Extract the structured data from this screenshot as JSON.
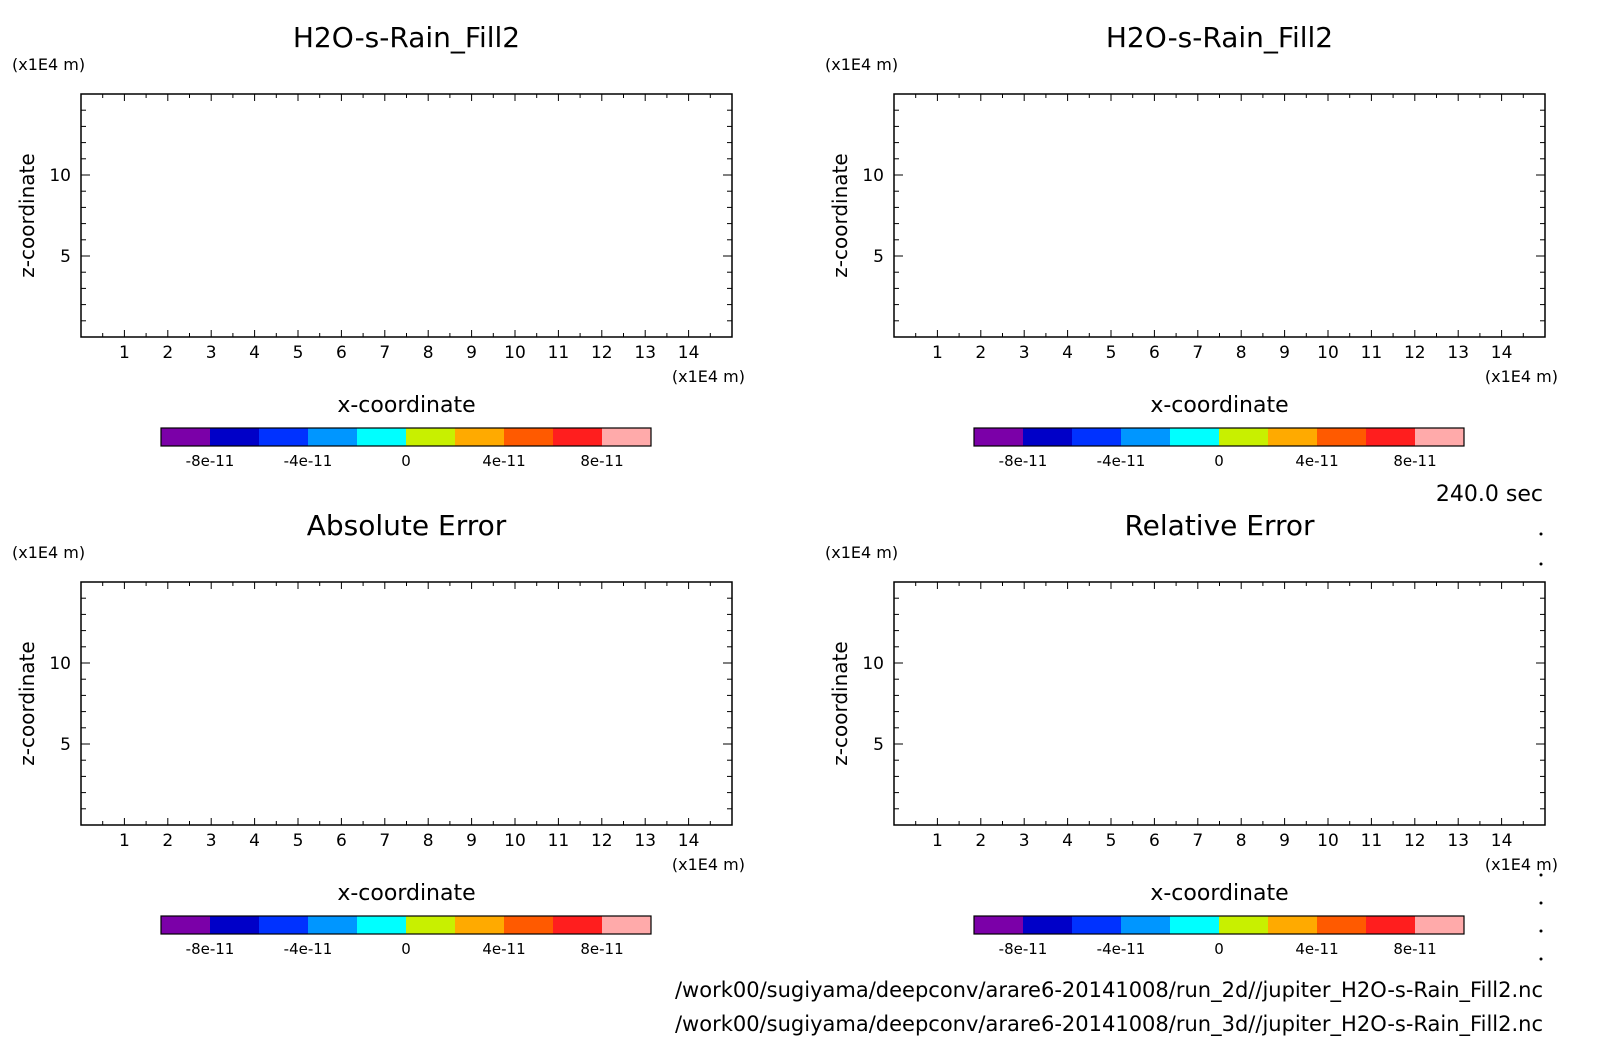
{
  "time_label": "240.0 sec",
  "footer_lines": [
    "/work00/sugiyama/deepconv/arare6-20141008/run_2d//jupiter_H2O-s-Rain_Fill2.nc",
    "/work00/sugiyama/deepconv/arare6-20141008/run_3d//jupiter_H2O-s-Rain_Fill2.nc"
  ],
  "colorbar_colors": [
    "#7b00a8",
    "#0000c8",
    "#0032ff",
    "#0096ff",
    "#00ffff",
    "#c8f000",
    "#ffaa00",
    "#ff5a00",
    "#ff1e1e",
    "#ffaaaa"
  ],
  "chart_data": [
    {
      "type": "heatmap",
      "title": "H2O-s-Rain_Fill2",
      "xlabel": "x-coordinate",
      "ylabel": "z-coordinate",
      "x_unit": "(x1E4 m)",
      "y_unit": "(x1E4 m)",
      "xlim": [
        0,
        15
      ],
      "ylim": [
        0,
        15
      ],
      "x_ticks": [
        1,
        2,
        3,
        4,
        5,
        6,
        7,
        8,
        9,
        10,
        11,
        12,
        13,
        14
      ],
      "y_ticks": [
        5,
        10
      ],
      "grid": false,
      "colorbar_range": [
        -1e-10,
        1e-10
      ],
      "colorbar_ticks": [
        {
          "value": -8e-11,
          "label": "-8e-11"
        },
        {
          "value": -4e-11,
          "label": "-4e-11"
        },
        {
          "value": 0,
          "label": "0"
        },
        {
          "value": 4e-11,
          "label": "4e-11"
        },
        {
          "value": 8e-11,
          "label": "8e-11"
        }
      ],
      "values": []
    },
    {
      "type": "heatmap",
      "title": "H2O-s-Rain_Fill2",
      "xlabel": "x-coordinate",
      "ylabel": "z-coordinate",
      "x_unit": "(x1E4 m)",
      "y_unit": "(x1E4 m)",
      "xlim": [
        0,
        15
      ],
      "ylim": [
        0,
        15
      ],
      "x_ticks": [
        1,
        2,
        3,
        4,
        5,
        6,
        7,
        8,
        9,
        10,
        11,
        12,
        13,
        14
      ],
      "y_ticks": [
        5,
        10
      ],
      "grid": false,
      "colorbar_range": [
        -1e-10,
        1e-10
      ],
      "colorbar_ticks": [
        {
          "value": -8e-11,
          "label": "-8e-11"
        },
        {
          "value": -4e-11,
          "label": "-4e-11"
        },
        {
          "value": 0,
          "label": "0"
        },
        {
          "value": 4e-11,
          "label": "4e-11"
        },
        {
          "value": 8e-11,
          "label": "8e-11"
        }
      ],
      "values": []
    },
    {
      "type": "heatmap",
      "title": "Absolute Error",
      "xlabel": "x-coordinate",
      "ylabel": "z-coordinate",
      "x_unit": "(x1E4 m)",
      "y_unit": "(x1E4 m)",
      "xlim": [
        0,
        15
      ],
      "ylim": [
        0,
        15
      ],
      "x_ticks": [
        1,
        2,
        3,
        4,
        5,
        6,
        7,
        8,
        9,
        10,
        11,
        12,
        13,
        14
      ],
      "y_ticks": [
        5,
        10
      ],
      "grid": false,
      "colorbar_range": [
        -1e-10,
        1e-10
      ],
      "colorbar_ticks": [
        {
          "value": -8e-11,
          "label": "-8e-11"
        },
        {
          "value": -4e-11,
          "label": "-4e-11"
        },
        {
          "value": 0,
          "label": "0"
        },
        {
          "value": 4e-11,
          "label": "4e-11"
        },
        {
          "value": 8e-11,
          "label": "8e-11"
        }
      ],
      "values": []
    },
    {
      "type": "heatmap",
      "title": "Relative Error",
      "xlabel": "x-coordinate",
      "ylabel": "z-coordinate",
      "x_unit": "(x1E4 m)",
      "y_unit": "(x1E4 m)",
      "xlim": [
        0,
        15
      ],
      "ylim": [
        0,
        15
      ],
      "x_ticks": [
        1,
        2,
        3,
        4,
        5,
        6,
        7,
        8,
        9,
        10,
        11,
        12,
        13,
        14
      ],
      "y_ticks": [
        5,
        10
      ],
      "grid": false,
      "colorbar_range": [
        -1e-10,
        1e-10
      ],
      "colorbar_ticks": [
        {
          "value": -8e-11,
          "label": "-8e-11"
        },
        {
          "value": -4e-11,
          "label": "-4e-11"
        },
        {
          "value": 0,
          "label": "0"
        },
        {
          "value": 4e-11,
          "label": "4e-11"
        },
        {
          "value": 8e-11,
          "label": "8e-11"
        }
      ],
      "values": []
    }
  ]
}
